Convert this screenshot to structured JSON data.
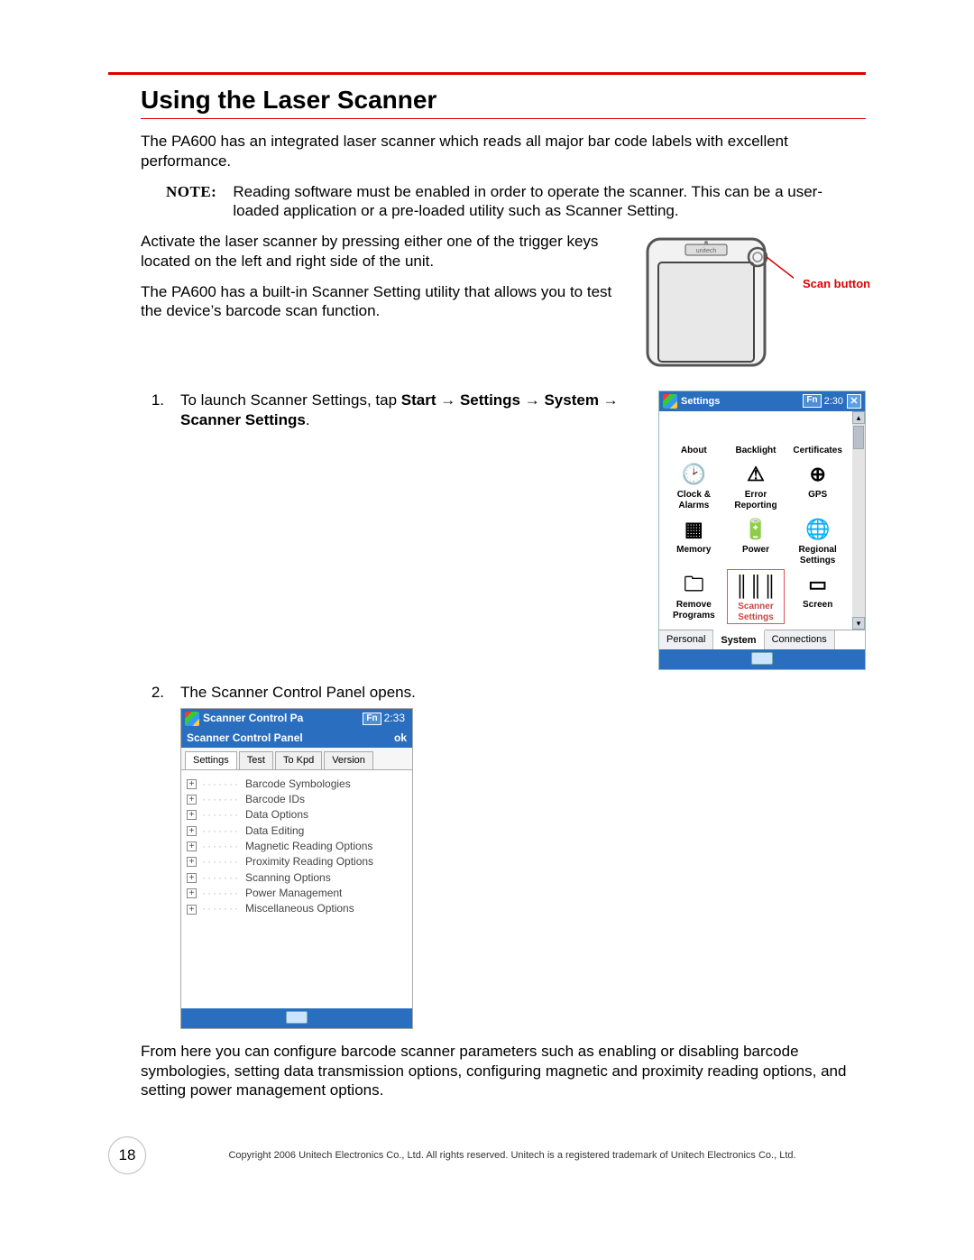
{
  "page": {
    "title": "Using the Laser Scanner",
    "intro": "The PA600 has an integrated laser scanner which reads all major bar code labels with excellent performance.",
    "note_label": "NOTE:",
    "note_text": "Reading software must be enabled in order to operate the scanner. This can be a user-loaded application or a pre-loaded utility such as Scanner Setting.",
    "activate": "Activate the laser scanner by pressing either one of the trigger keys located on the left and right side of the unit.",
    "builtin": "The PA600 has a built-in Scanner Setting utility that allows you to test the device’s barcode scan function.",
    "scan_button_label": "Scan button",
    "step1_pre": "To launch Scanner Settings, tap ",
    "step1_bold1": "Start",
    "step1_arrow": " → ",
    "step1_bold2": "Settings → System → Scanner Settings",
    "step1_period": ".",
    "step2_text": "The Scanner Control Panel opens.",
    "closing": "From here you can configure barcode scanner parameters such as enabling or disabling barcode symbologies, setting data transmission options, configuring magnetic and proximity reading options, and setting power management options.",
    "page_number": "18",
    "copyright": "Copyright 2006 Unitech Electronics Co., Ltd. All rights reserved. Unitech is a registered trademark of Unitech Electronics Co., Ltd."
  },
  "settings_window": {
    "title": "Settings",
    "time": "2:30",
    "fn_badge": "Fn",
    "close_glyph": "✕",
    "icons": [
      {
        "label": "About",
        "glyph": ""
      },
      {
        "label": "Backlight",
        "glyph": ""
      },
      {
        "label": "Certificates",
        "glyph": ""
      },
      {
        "label": "Clock & Alarms",
        "glyph": "🕑"
      },
      {
        "label": "Error Reporting",
        "glyph": "⚠"
      },
      {
        "label": "GPS",
        "glyph": "⊕"
      },
      {
        "label": "Memory",
        "glyph": "▦"
      },
      {
        "label": "Power",
        "glyph": "🔋"
      },
      {
        "label": "Regional Settings",
        "glyph": "🌐"
      },
      {
        "label": "Remove Programs",
        "glyph": "🗀"
      },
      {
        "label": "Scanner Settings",
        "glyph": "║║║",
        "selected": true
      },
      {
        "label": "Screen",
        "glyph": "▭"
      }
    ],
    "tabs": [
      "Personal",
      "System",
      "Connections"
    ],
    "active_tab": "System"
  },
  "scp_window": {
    "title": "Scanner Control Pa",
    "time": "2:33",
    "subtitle": "Scanner Control Panel",
    "ok": "ok",
    "tabs": [
      "Settings",
      "Test",
      "To Kpd",
      "Version"
    ],
    "active_tab": "Settings",
    "tree": [
      "Barcode Symbologies",
      "Barcode IDs",
      "Data Options",
      "Data Editing",
      "Magnetic Reading Options",
      "Proximity Reading Options",
      "Scanning Options",
      "Power Management",
      "Miscellaneous Options"
    ]
  },
  "colors": {
    "accent_red": "#d00000",
    "wm_blue": "#2a6ebf"
  }
}
